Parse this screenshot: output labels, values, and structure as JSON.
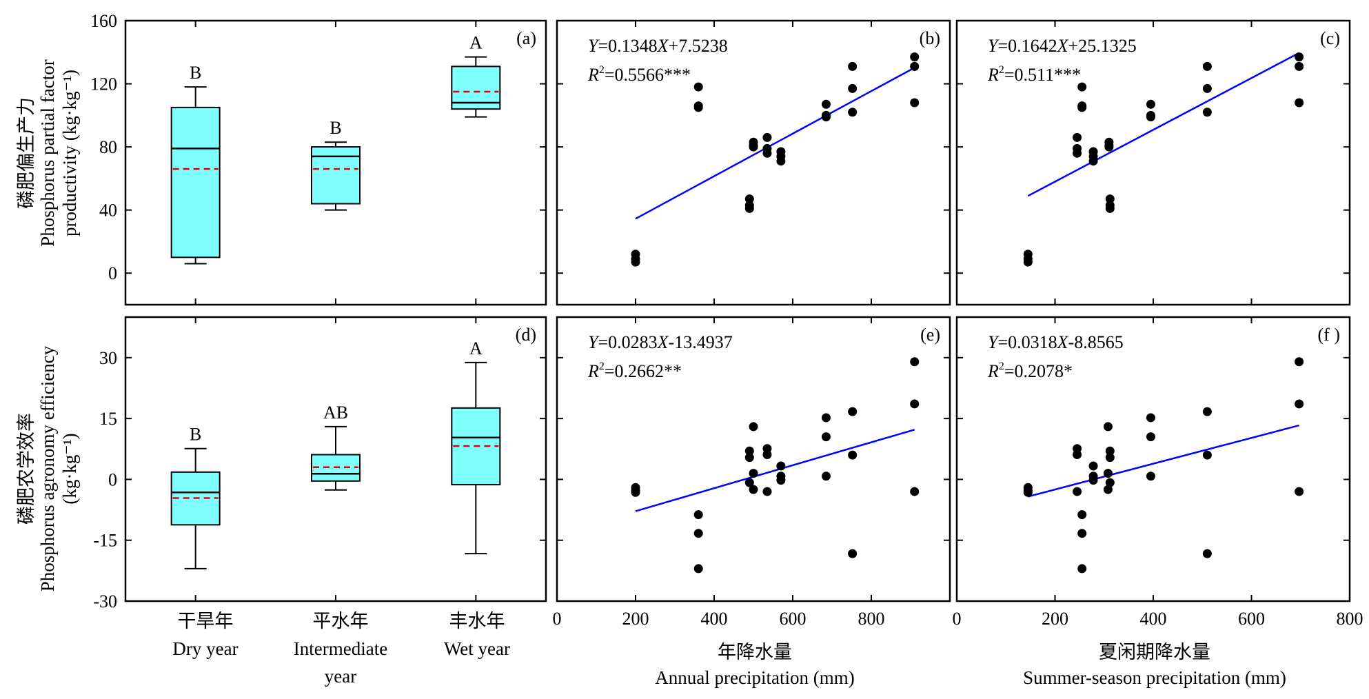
{
  "figure": {
    "ylabel_top": [
      "磷肥偏生产力",
      "Phosphorus partial factor",
      "productivity (kg·kg⁻¹)"
    ],
    "ylabel_bottom": [
      "磷肥农学效率",
      "Phosphorus agronomy efficiency",
      "(kg·kg⁻¹)"
    ],
    "xlabel_box": [
      [
        "干旱年",
        "Dry year"
      ],
      [
        "平水年",
        "Intermediate",
        "year"
      ],
      [
        "丰水年",
        "Wet year"
      ]
    ],
    "xlabel_annual": [
      "年降水量",
      "Annual precipitation (mm)"
    ],
    "xlabel_summer": [
      "夏闲期降水量",
      "Summer-season precipitation (mm)"
    ]
  },
  "chart_data": [
    {
      "panel": "(a)",
      "type": "box",
      "categories": [
        "干旱年",
        "平水年",
        "丰水年"
      ],
      "ylim": [
        -20,
        160
      ],
      "yticks": [
        0,
        40,
        80,
        120,
        160
      ],
      "boxes": [
        {
          "min": 6,
          "q1": 10,
          "median": 79,
          "q3": 105,
          "max": 118,
          "mean": 66,
          "letter": "B"
        },
        {
          "min": 40,
          "q1": 44,
          "median": 74,
          "q3": 80,
          "max": 83,
          "mean": 66,
          "letter": "B"
        },
        {
          "min": 99,
          "q1": 104,
          "median": 108,
          "q3": 131,
          "max": 137,
          "mean": 115,
          "letter": "A"
        }
      ],
      "colors": {
        "box": "#80ffff",
        "median": "#000000",
        "mean": "#e00000"
      }
    },
    {
      "panel": "(b)",
      "type": "scatter",
      "xlim": [
        0,
        1000
      ],
      "xticks": [
        0,
        200,
        400,
        600,
        800
      ],
      "ylim": [
        -20,
        160
      ],
      "yticks": [
        0,
        40,
        80,
        120,
        160
      ],
      "equation": "Y=0.1348X+7.5238",
      "r2_text": "R2=0.5566***",
      "fit": {
        "x0": 200,
        "x1": 910,
        "slope": 0.1348,
        "intercept": 7.5238
      },
      "points": [
        [
          200,
          12
        ],
        [
          200,
          9
        ],
        [
          200,
          7
        ],
        [
          360,
          118
        ],
        [
          360,
          106
        ],
        [
          360,
          105
        ],
        [
          490,
          47
        ],
        [
          490,
          43
        ],
        [
          490,
          41
        ],
        [
          500,
          83
        ],
        [
          500,
          81
        ],
        [
          500,
          80
        ],
        [
          535,
          86
        ],
        [
          535,
          79
        ],
        [
          535,
          76
        ],
        [
          570,
          77
        ],
        [
          570,
          74
        ],
        [
          570,
          71
        ],
        [
          685,
          107
        ],
        [
          685,
          100
        ],
        [
          685,
          99
        ],
        [
          752,
          131
        ],
        [
          752,
          117
        ],
        [
          752,
          102
        ],
        [
          910,
          137
        ],
        [
          910,
          131
        ],
        [
          910,
          108
        ]
      ]
    },
    {
      "panel": "(c)",
      "type": "scatter",
      "xlim": [
        0,
        800
      ],
      "xticks": [
        0,
        200,
        400,
        600,
        800
      ],
      "ylim": [
        -20,
        160
      ],
      "yticks": [
        0,
        40,
        80,
        120,
        160
      ],
      "equation": "Y=0.1642X+25.1325",
      "r2_text": "R2=0.511***",
      "fit": {
        "x0": 145,
        "x1": 697,
        "slope": 0.1642,
        "intercept": 25.1325
      },
      "points": [
        [
          145,
          12
        ],
        [
          145,
          9
        ],
        [
          145,
          7
        ],
        [
          255,
          118
        ],
        [
          255,
          106
        ],
        [
          255,
          105
        ],
        [
          245,
          86
        ],
        [
          245,
          79
        ],
        [
          245,
          76
        ],
        [
          278,
          77
        ],
        [
          278,
          74
        ],
        [
          278,
          71
        ],
        [
          310,
          83
        ],
        [
          310,
          81
        ],
        [
          310,
          80
        ],
        [
          312,
          47
        ],
        [
          312,
          43
        ],
        [
          312,
          41
        ],
        [
          395,
          107
        ],
        [
          395,
          100
        ],
        [
          395,
          99
        ],
        [
          510,
          131
        ],
        [
          510,
          117
        ],
        [
          510,
          102
        ],
        [
          697,
          137
        ],
        [
          697,
          131
        ],
        [
          697,
          108
        ]
      ]
    },
    {
      "panel": "(d)",
      "type": "box",
      "categories": [
        "干旱年",
        "平水年",
        "丰水年"
      ],
      "ylim": [
        -30,
        40
      ],
      "yticks": [
        -30,
        -15,
        0,
        15,
        30
      ],
      "boxes": [
        {
          "min": -22,
          "q1": -11.2,
          "median": -3.2,
          "q3": 1.8,
          "max": 7.6,
          "mean": -4.6,
          "letter": "B"
        },
        {
          "min": -2.6,
          "q1": -0.4,
          "median": 1.4,
          "q3": 6.1,
          "max": 13,
          "mean": 3,
          "letter": "AB"
        },
        {
          "min": -18.3,
          "q1": -1.3,
          "median": 10.3,
          "q3": 17.6,
          "max": 28.8,
          "mean": 8.2,
          "letter": "A"
        }
      ],
      "colors": {
        "box": "#80ffff",
        "median": "#000000",
        "mean": "#e00000"
      }
    },
    {
      "panel": "(e)",
      "type": "scatter",
      "xlim": [
        0,
        1000
      ],
      "xticks": [
        0,
        200,
        400,
        600,
        800
      ],
      "ylim": [
        -30,
        40
      ],
      "yticks": [
        -30,
        -15,
        0,
        15,
        30
      ],
      "equation": "Y=0.0283X-13.4937",
      "r2_text": "R2=0.2662**",
      "fit": {
        "x0": 200,
        "x1": 910,
        "slope": 0.0283,
        "intercept": -13.4937
      },
      "points": [
        [
          200,
          -2
        ],
        [
          200,
          -2.7
        ],
        [
          200,
          -3.2
        ],
        [
          360,
          -8.7
        ],
        [
          360,
          -13.3
        ],
        [
          360,
          -22
        ],
        [
          490,
          7
        ],
        [
          490,
          5.4
        ],
        [
          490,
          -0.8
        ],
        [
          500,
          13
        ],
        [
          500,
          1.5
        ],
        [
          500,
          -2.5
        ],
        [
          535,
          7.6
        ],
        [
          535,
          6.1
        ],
        [
          535,
          -3
        ],
        [
          570,
          3.3
        ],
        [
          570,
          0.8
        ],
        [
          570,
          -0.2
        ],
        [
          685,
          15.2
        ],
        [
          685,
          10.5
        ],
        [
          685,
          0.8
        ],
        [
          752,
          16.7
        ],
        [
          752,
          6
        ],
        [
          752,
          -18.3
        ],
        [
          910,
          29
        ],
        [
          910,
          18.6
        ],
        [
          910,
          -3
        ]
      ]
    },
    {
      "panel": "(f )",
      "type": "scatter",
      "xlim": [
        0,
        800
      ],
      "xticks": [
        0,
        200,
        400,
        600,
        800
      ],
      "ylim": [
        -30,
        40
      ],
      "yticks": [
        -30,
        -15,
        0,
        15,
        30
      ],
      "equation": "Y=0.0318X-8.8565",
      "r2_text": "R2=0.2078*",
      "fit": {
        "x0": 145,
        "x1": 697,
        "slope": 0.0318,
        "intercept": -8.8565
      },
      "points": [
        [
          145,
          -2
        ],
        [
          145,
          -2.7
        ],
        [
          145,
          -3.2
        ],
        [
          245,
          7.6
        ],
        [
          245,
          6.1
        ],
        [
          245,
          -3
        ],
        [
          255,
          -8.7
        ],
        [
          255,
          -13.3
        ],
        [
          255,
          -22
        ],
        [
          278,
          3.3
        ],
        [
          278,
          0.8
        ],
        [
          278,
          -0.2
        ],
        [
          308,
          13
        ],
        [
          308,
          1.5
        ],
        [
          308,
          -2.5
        ],
        [
          312,
          7
        ],
        [
          312,
          5.4
        ],
        [
          312,
          -0.8
        ],
        [
          395,
          15.2
        ],
        [
          395,
          10.5
        ],
        [
          395,
          0.8
        ],
        [
          510,
          16.7
        ],
        [
          510,
          6
        ],
        [
          510,
          -18.3
        ],
        [
          697,
          29
        ],
        [
          697,
          18.6
        ],
        [
          697,
          -3
        ]
      ]
    }
  ]
}
